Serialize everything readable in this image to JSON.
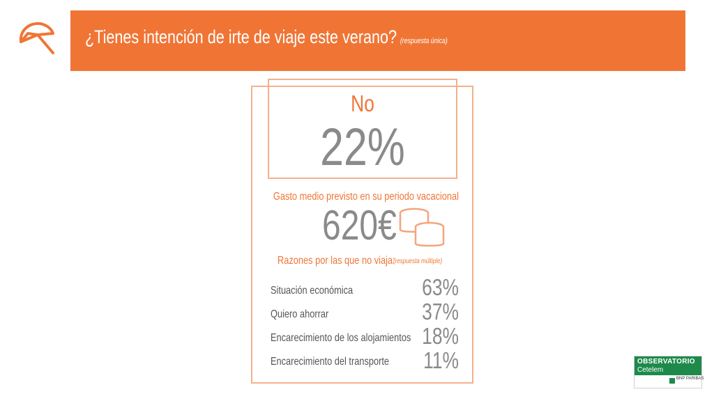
{
  "header": {
    "title": "¿Tienes intención de irte de viaje este verano?",
    "note": "(respuesta única)"
  },
  "answer": {
    "label": "No",
    "value": "22%"
  },
  "spending": {
    "label": "Gasto medio previsto en su periodo vacacional",
    "value": "620€"
  },
  "reasons": {
    "heading": "Razones por las que no viaja:",
    "note": "(respuesta múltiple)",
    "items": [
      {
        "label": "Situación económica",
        "value": "63%"
      },
      {
        "label": "Quiero ahorrar",
        "value": "37%"
      },
      {
        "label": "Encarecimiento de los alojamientos",
        "value": "18%"
      },
      {
        "label": "Encarecimiento del transporte",
        "value": "11%"
      }
    ]
  },
  "logo": {
    "title": "OBSERVATORIO",
    "subtitle": "Cetelem",
    "bank": "BNP PARIBAS"
  },
  "icons": {
    "brand": "beach-umbrella-icon",
    "money": "coins-icon"
  },
  "colors": {
    "accent": "#f07535",
    "border": "#f3b08c",
    "value_gray": "#8a8a8a",
    "logo_green": "#1d8a4b"
  }
}
